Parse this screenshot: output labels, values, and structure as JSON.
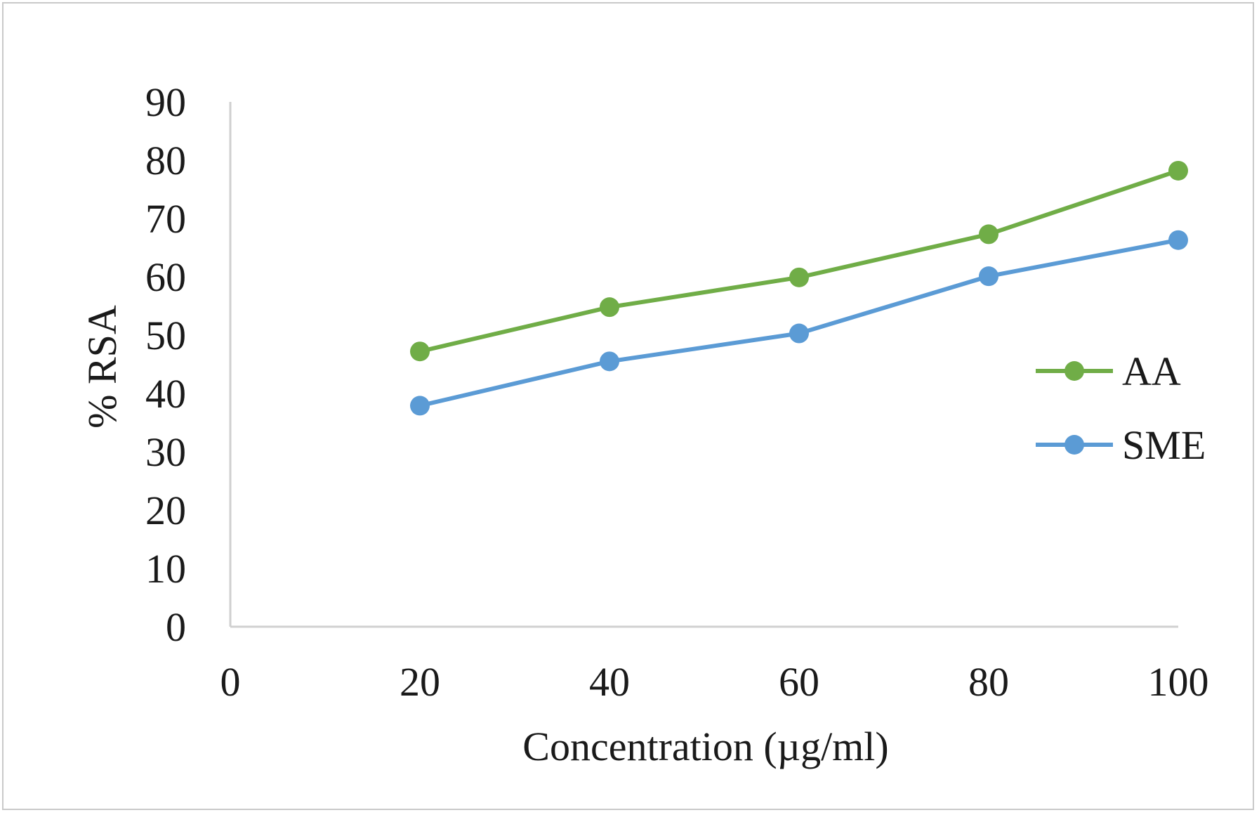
{
  "chart_data": {
    "type": "line",
    "title": "",
    "xlabel": "Concentration (µg/ml)",
    "ylabel": "% RSA",
    "xlim": [
      0,
      100
    ],
    "ylim": [
      0,
      90
    ],
    "x_ticks": [
      0,
      20,
      40,
      60,
      80,
      100
    ],
    "y_ticks": [
      0,
      10,
      20,
      30,
      40,
      50,
      60,
      70,
      80,
      90
    ],
    "x": [
      20,
      40,
      60,
      80,
      100
    ],
    "series": [
      {
        "name": "AA",
        "color": "#70ad47",
        "values": [
          47.2,
          54.8,
          59.9,
          67.3,
          78.2
        ]
      },
      {
        "name": "SME",
        "color": "#5b9bd5",
        "values": [
          37.9,
          45.5,
          50.3,
          60.1,
          66.3
        ]
      }
    ],
    "grid": false,
    "legend_position": "right"
  }
}
